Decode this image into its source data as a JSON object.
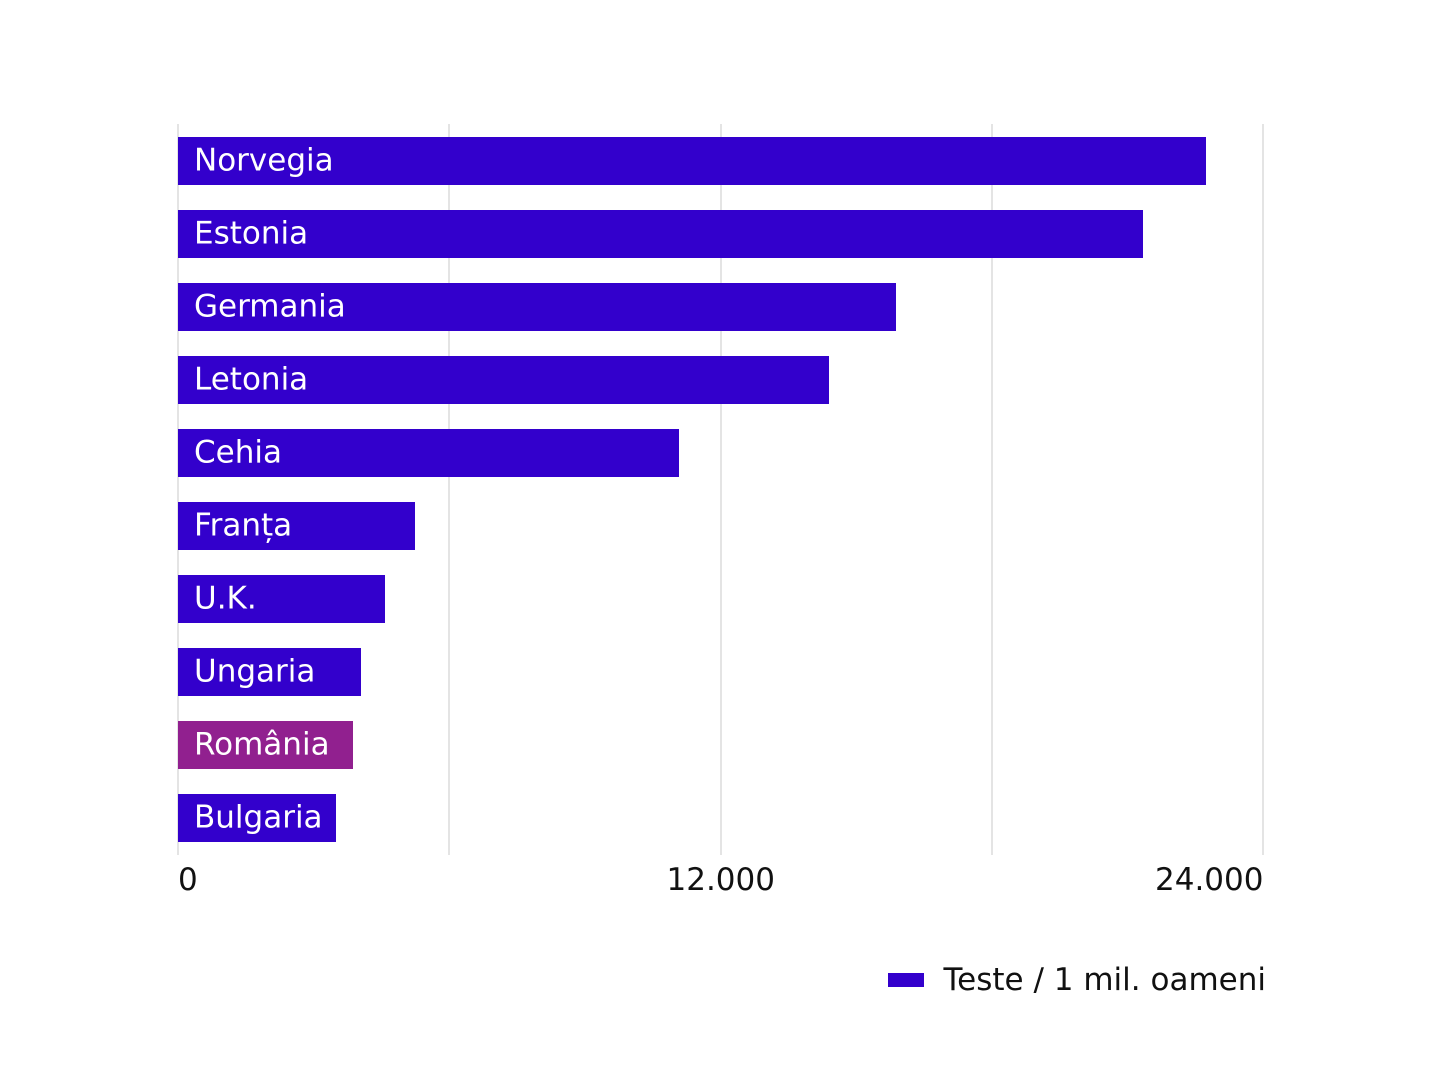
{
  "chart_data": {
    "type": "bar",
    "orientation": "horizontal",
    "title": "",
    "xlabel": "",
    "ylabel": "",
    "categories": [
      "Norvegia",
      "Estonia",
      "Germania",
      "Letonia",
      "Cehia",
      "Franța",
      "U.K.",
      "Ungaria",
      "România",
      "Bulgaria"
    ],
    "series": [
      {
        "name": "Teste / 1 mil. oameni",
        "values": [
          22740,
          21340,
          15880,
          14400,
          11080,
          5240,
          4580,
          4050,
          3870,
          3490
        ]
      }
    ],
    "highlight": {
      "category": "România",
      "color": "#91208f"
    },
    "bar_color": "#3300cc",
    "xlim": [
      0,
      24000
    ],
    "x_ticks": [
      {
        "value": 0,
        "label": "0"
      },
      {
        "value": 12000,
        "label": "12.000"
      },
      {
        "value": 24000,
        "label": "24.000"
      }
    ],
    "gridlines_at": [
      0,
      6000,
      12000,
      18000,
      24000
    ],
    "grid": true,
    "legend_position": "bottom-right",
    "legend": [
      {
        "label": "Teste / 1 mil. oameni",
        "color": "#3300cc"
      }
    ]
  }
}
